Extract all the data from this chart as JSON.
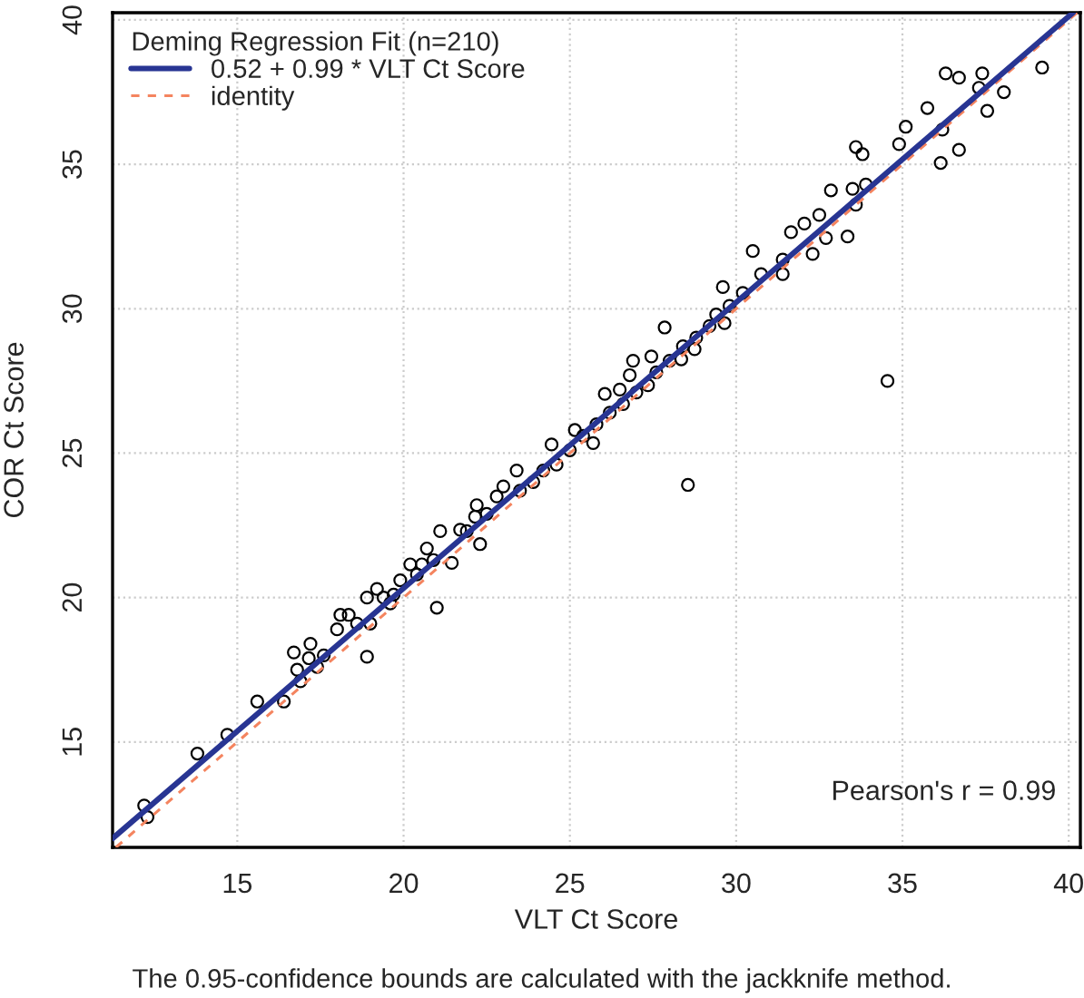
{
  "chart_data": {
    "type": "scatter",
    "xlabel": "VLT Ct Score",
    "ylabel": "COR Ct Score",
    "legend_title": "Deming Regression Fit (n=210)",
    "legend": "top left",
    "grid": true,
    "xlim": [
      11.25,
      40.35
    ],
    "ylim": [
      11.35,
      40.25
    ],
    "xticks": [
      15,
      20,
      25,
      30,
      35,
      40
    ],
    "yticks": [
      15,
      20,
      25,
      30,
      35,
      40
    ],
    "annotations": [
      "Pearson's r = 0.99",
      "The 0.95-confidence bounds are calculated with the jackknife method."
    ],
    "series": [
      {
        "color": "#000000",
        "marker": "circle",
        "x": [
          12.2,
          12.3,
          13.8,
          14.7,
          15.6,
          16.4,
          16.7,
          16.8,
          16.9,
          17.15,
          17.2,
          17.4,
          17.6,
          18.0,
          18.1,
          18.35,
          18.6,
          18.9,
          18.9,
          19.0,
          19.2,
          19.4,
          19.6,
          19.7,
          19.9,
          20.2,
          20.4,
          20.55,
          20.7,
          20.9,
          21.0,
          21.1,
          21.45,
          21.7,
          21.9,
          22.15,
          22.2,
          22.3,
          22.5,
          22.8,
          23.0,
          23.4,
          23.5,
          23.9,
          24.2,
          24.45,
          24.6,
          25.0,
          25.15,
          25.4,
          25.7,
          25.8,
          26.05,
          26.2,
          26.5,
          26.6,
          26.8,
          26.9,
          27.0,
          27.35,
          27.45,
          27.6,
          27.85,
          28.0,
          28.35,
          28.4,
          28.55,
          28.75,
          28.8,
          29.2,
          29.4,
          29.6,
          29.65,
          29.8,
          30.2,
          30.5,
          30.75,
          31.4,
          31.4,
          31.65,
          32.05,
          32.3,
          32.5,
          32.7,
          32.85,
          33.35,
          33.5,
          33.6,
          33.6,
          33.8,
          33.9,
          34.55,
          34.9,
          35.1,
          35.75,
          36.15,
          36.2,
          36.3,
          36.7,
          36.7,
          37.3,
          37.4,
          37.55,
          38.05,
          39.2
        ],
        "values": [
          12.8,
          12.4,
          14.6,
          15.25,
          16.4,
          16.4,
          18.1,
          17.5,
          17.1,
          17.9,
          18.4,
          17.6,
          18.0,
          18.9,
          19.4,
          19.4,
          19.1,
          17.95,
          20.0,
          19.1,
          20.3,
          20.0,
          19.8,
          20.1,
          20.6,
          21.15,
          20.8,
          21.15,
          21.7,
          21.3,
          19.65,
          22.3,
          21.2,
          22.35,
          22.3,
          22.8,
          23.2,
          21.85,
          22.9,
          23.5,
          23.85,
          24.4,
          23.7,
          24.0,
          24.4,
          25.3,
          24.6,
          25.1,
          25.8,
          25.6,
          25.35,
          26.0,
          27.05,
          26.4,
          27.2,
          26.7,
          27.7,
          28.2,
          27.1,
          27.35,
          28.35,
          27.8,
          29.35,
          28.2,
          28.25,
          28.7,
          23.9,
          28.6,
          29.0,
          29.4,
          29.8,
          30.75,
          29.5,
          30.1,
          30.55,
          32.0,
          31.2,
          31.7,
          31.2,
          32.65,
          32.95,
          31.9,
          33.25,
          32.45,
          34.1,
          32.5,
          34.15,
          35.6,
          33.6,
          35.35,
          34.3,
          27.5,
          35.7,
          36.3,
          36.95,
          35.05,
          36.2,
          38.15,
          38.0,
          35.5,
          37.65,
          38.15,
          36.85,
          37.5,
          38.35
        ]
      },
      {
        "type": "line",
        "name": "0.52 + 0.99 * VLT Ct Score",
        "color": "#283593",
        "line_style": "solid",
        "x": [
          11.25,
          40.13
        ],
        "values": [
          11.66,
          40.25
        ]
      },
      {
        "type": "line",
        "name": "identity",
        "color": "#f4845f",
        "line_style": "dashed",
        "x": [
          11.35,
          40.25
        ],
        "values": [
          11.35,
          40.25
        ]
      }
    ]
  }
}
